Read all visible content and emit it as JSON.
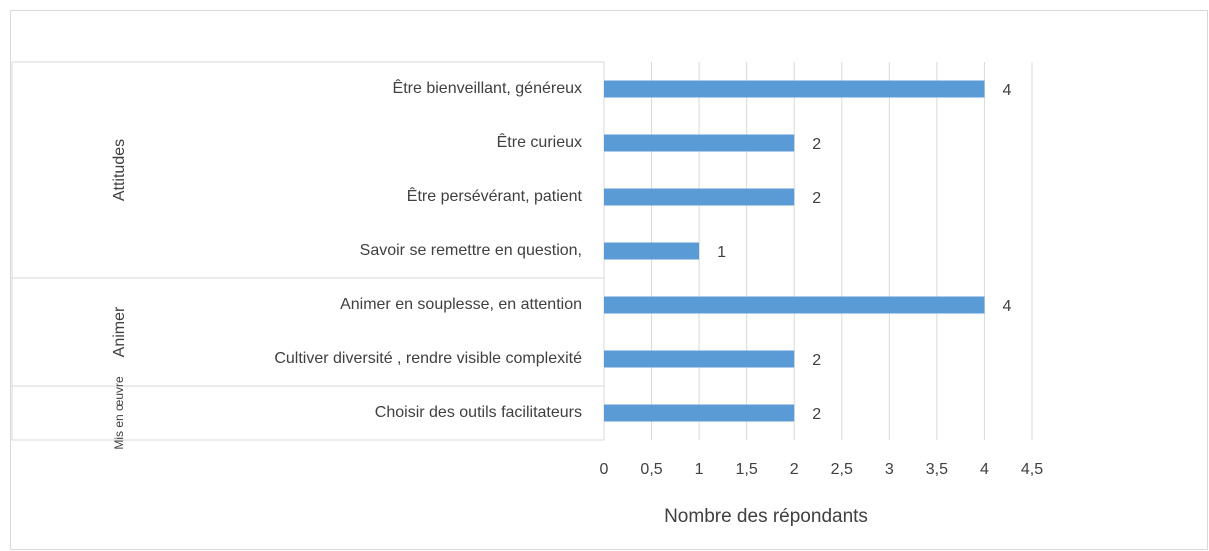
{
  "chart_data": {
    "type": "bar",
    "orientation": "horizontal",
    "color": "#5b9bd5",
    "groups": [
      {
        "name": "Attitudes",
        "categories": [
          "Être bienveillant, généreux",
          "Être curieux",
          "Être persévérant, patient",
          "Savoir se remettre en question,"
        ],
        "values": [
          4,
          2,
          2,
          1
        ]
      },
      {
        "name": "Animer",
        "categories": [
          "Animer en souplesse, en attention",
          "Cultiver diversité , rendre visible complexité"
        ],
        "values": [
          4,
          2
        ]
      },
      {
        "name": "Mis en œuvre",
        "categories": [
          "Choisir des outils facilitateurs"
        ],
        "values": [
          2
        ]
      }
    ],
    "xlabel": "Nombre des répondants",
    "xlim": [
      0,
      4.5
    ],
    "xticks": [
      0,
      {
        "value": 0.5,
        "label": "0,5"
      },
      1,
      {
        "value": 1.5,
        "label": "1,5"
      },
      2,
      {
        "value": 2.5,
        "label": "2,5"
      },
      3,
      {
        "value": 3.5,
        "label": "3,5"
      },
      4,
      {
        "value": 4.5,
        "label": "4,5"
      }
    ],
    "grid": true
  }
}
